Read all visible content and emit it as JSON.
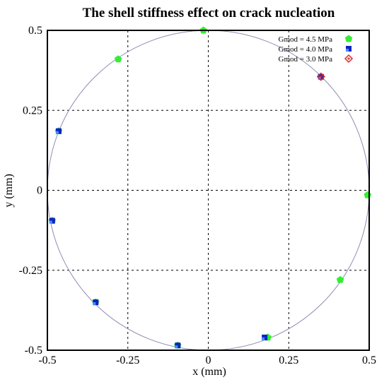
{
  "chart_data": {
    "type": "scatter",
    "title": "The shell stiffness effect on crack nucleation",
    "xlabel": "x (mm)",
    "ylabel": "y (mm)",
    "xlim": [
      -0.5,
      0.5
    ],
    "ylim": [
      -0.5,
      0.5
    ],
    "xticks": [
      "-0.5",
      "-0.25",
      "0",
      "0.25",
      "0.5"
    ],
    "yticks": [
      "-0.5",
      "-0.25",
      "0",
      "0.25",
      "0.5"
    ],
    "xtick_values": [
      -0.5,
      -0.25,
      0,
      0.25,
      0.5
    ],
    "ytick_values": [
      -0.5,
      -0.25,
      0,
      0.25,
      0.5
    ],
    "grid": true,
    "legend_position": "top-right",
    "reference_circle": {
      "center": [
        0,
        0
      ],
      "radius": 0.5,
      "color": "#8c8cb4"
    },
    "series": [
      {
        "name": "Gmod = 4.5 MPa",
        "marker": "pentagon",
        "color": "#33ee33",
        "points": [
          [
            -0.015,
            0.5
          ],
          [
            -0.28,
            0.41
          ],
          [
            0.35,
            0.355
          ],
          [
            -0.465,
            0.185
          ],
          [
            0.495,
            -0.015
          ],
          [
            -0.485,
            -0.095
          ],
          [
            0.41,
            -0.28
          ],
          [
            -0.35,
            -0.35
          ],
          [
            0.185,
            -0.46
          ],
          [
            -0.095,
            -0.485
          ]
        ]
      },
      {
        "name": "Gmod = 4.0 MPa",
        "marker": "square",
        "color": "#0b24c2",
        "points": [
          [
            0.35,
            0.355
          ],
          [
            -0.465,
            0.185
          ],
          [
            -0.485,
            -0.095
          ],
          [
            -0.35,
            -0.35
          ],
          [
            0.175,
            -0.46
          ],
          [
            -0.095,
            -0.485
          ]
        ]
      },
      {
        "name": "Gmod = 3.0 MPa",
        "marker": "diamond",
        "color": "#e0262b",
        "points": [
          [
            0.35,
            0.355
          ]
        ]
      }
    ]
  }
}
